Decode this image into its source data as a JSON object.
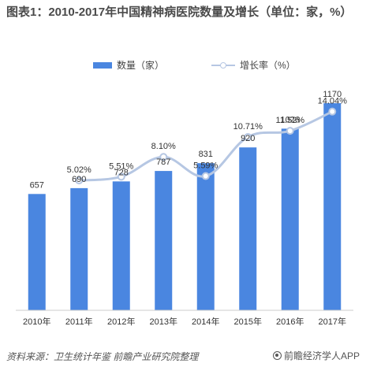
{
  "chart_data": {
    "type": "bar",
    "title": "图表1：2010-2017年中国精神病医院数量及增长（单位：家，%）",
    "categories": [
      "2010年",
      "2011年",
      "2012年",
      "2013年",
      "2014年",
      "2015年",
      "2016年",
      "2017年"
    ],
    "series": [
      {
        "name": "数量（家）",
        "type": "bar",
        "values": [
          657,
          690,
          728,
          787,
          831,
          920,
          1026,
          1170
        ],
        "labels": [
          "657",
          "690",
          "728",
          "787",
          "831",
          "920",
          "1026",
          "1170"
        ],
        "color": "#4a86e0"
      },
      {
        "name": "增长率（%）",
        "type": "line",
        "values": [
          null,
          5.02,
          5.51,
          8.1,
          5.59,
          10.71,
          11.52,
          14.04
        ],
        "labels": [
          "",
          "5.02%",
          "5.51%",
          "8.10%",
          "5.59%",
          "10.71%",
          "11.52%",
          "14.04%"
        ],
        "color": "#b6c7e3"
      }
    ],
    "ylim": [
      0,
      1250
    ],
    "y2lim": [
      -12,
      17
    ],
    "grid": false,
    "legend": "top-center"
  },
  "footer": {
    "source": "资料来源：卫生统计年鉴  前瞻产业研究院整理",
    "brand": "前瞻经济学人APP"
  }
}
